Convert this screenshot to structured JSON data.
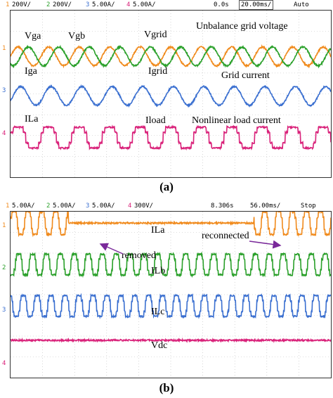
{
  "panels": [
    {
      "caption": "(a)",
      "status": {
        "ch1": "1",
        "ch1_scale": "200V/",
        "ch2": "2",
        "ch2_scale": "200V/",
        "ch3": "3",
        "ch3_scale": "5.00A/",
        "ch4": "4",
        "ch4_scale": "5.00A/",
        "time_offset": "0.0s",
        "time_scale": "20.00ms/",
        "mode": "Auto"
      },
      "annotations": {
        "vga": "Vga",
        "vgb": "Vgb",
        "vgrid": "Vgrid",
        "unbalance": "Unbalance grid voltage",
        "iga": "Iga",
        "igrid": "Igrid",
        "grid_current": "Grid current",
        "ila": "ILa",
        "iload": "Iload",
        "nonlinear": "Nonlinear load current"
      },
      "ground_markers": {
        "m1": "1",
        "m3": "3",
        "m4": "4"
      }
    },
    {
      "caption": "(b)",
      "status": {
        "ch1": "1",
        "ch1_scale": "5.00A/",
        "ch2": "2",
        "ch2_scale": "5.00A/",
        "ch3": "3",
        "ch3_scale": "5.00A/",
        "ch4": "4",
        "ch4_scale": "300V/",
        "time_offset": "8.306s",
        "time_scale": "56.00ms/",
        "mode": "Stop"
      },
      "annotations": {
        "ila": "ILa",
        "reconnected": "reconnected",
        "removed": "removed",
        "ilb": "ILb",
        "ilc": "ILc",
        "vdc": "Vdc"
      },
      "ground_markers": {
        "m1": "1",
        "m2": "2",
        "m3": "3",
        "m4": "4"
      }
    }
  ],
  "colors": {
    "ch1": "#f08a1c",
    "ch2": "#2aa02a",
    "ch3": "#3a6fd0",
    "ch4": "#d9227a",
    "grid": "#bdbdbd",
    "annotation_arrow": "#7a2a9a"
  },
  "chart_data": [
    {
      "type": "line",
      "title": "",
      "x_divisions": 10,
      "y_divisions": 8,
      "series": [
        {
          "name": "Vga",
          "channel": 1,
          "waveform": "sine",
          "cycles": 10.5,
          "amplitude_div": 0.45,
          "center_div": 2.2,
          "phase_deg": 0
        },
        {
          "name": "Vgb",
          "channel": 2,
          "waveform": "sine",
          "cycles": 10.5,
          "amplitude_div": 0.45,
          "center_div": 2.2,
          "phase_deg": 120
        },
        {
          "name": "Iga",
          "channel": 3,
          "waveform": "sine",
          "cycles": 10.5,
          "amplitude_div": 0.45,
          "center_div": 4.1,
          "phase_deg": 30
        },
        {
          "name": "ILa",
          "channel": 4,
          "waveform": "six-step",
          "cycles": 10.5,
          "amplitude_div": 0.5,
          "center_div": 6.1,
          "phase_deg": 0
        }
      ]
    },
    {
      "type": "line",
      "title": "",
      "x_divisions": 10,
      "y_divisions": 8,
      "removed_at_div": 1.8,
      "reconnected_at_div": 7.6,
      "series": [
        {
          "name": "ILa",
          "channel": 1,
          "waveform": "six-step-interrupted",
          "cycles": 23,
          "amplitude_div": 0.55,
          "center_div": 0.55
        },
        {
          "name": "ILb",
          "channel": 2,
          "waveform": "six-step",
          "cycles": 23,
          "amplitude_div": 0.5,
          "center_div": 2.55,
          "phase_deg": 120
        },
        {
          "name": "ILc",
          "channel": 3,
          "waveform": "six-step",
          "cycles": 23,
          "amplitude_div": 0.5,
          "center_div": 4.55,
          "phase_deg": 240
        },
        {
          "name": "Vdc",
          "channel": 4,
          "waveform": "dc",
          "center_div": 6.2
        }
      ]
    }
  ]
}
